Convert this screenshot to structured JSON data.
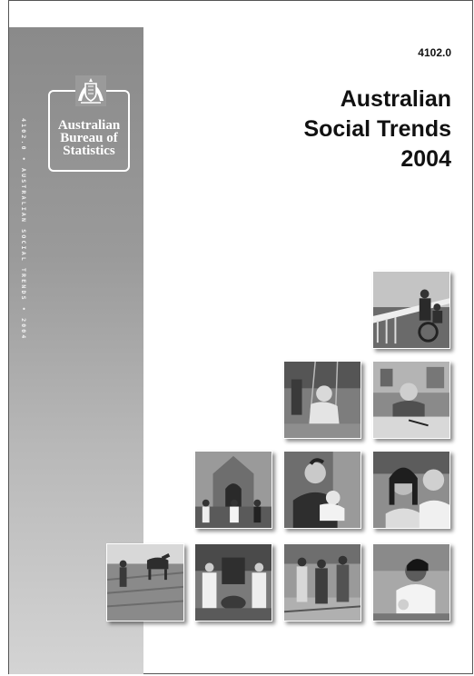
{
  "spine": {
    "vertical_text": "4102.0 • AUSTRALIAN SOCIAL TRENDS • 2004"
  },
  "logo": {
    "name": "Australian Bureau of Statistics",
    "icon": "coat-of-arms-icon"
  },
  "catalogue_number": "4102.0",
  "title_lines": [
    "Australian",
    "Social Trends",
    "2004"
  ],
  "photos": [
    {
      "id": "photo-pier-wheelchair",
      "subject": "people on pier with wheelchair"
    },
    {
      "id": "photo-boy-swing",
      "subject": "boy on swing"
    },
    {
      "id": "photo-girl-writing",
      "subject": "girl writing at desk"
    },
    {
      "id": "photo-church-wedding",
      "subject": "wedding at church"
    },
    {
      "id": "photo-father-baby",
      "subject": "father holding baby"
    },
    {
      "id": "photo-smiling-couple",
      "subject": "smiling couple"
    },
    {
      "id": "photo-farmer-horses",
      "subject": "farmer ploughing with horses"
    },
    {
      "id": "photo-nurses",
      "subject": "nurses with patients"
    },
    {
      "id": "photo-three-men",
      "subject": "three men walking"
    },
    {
      "id": "photo-woman-sewing",
      "subject": "woman working"
    }
  ]
}
